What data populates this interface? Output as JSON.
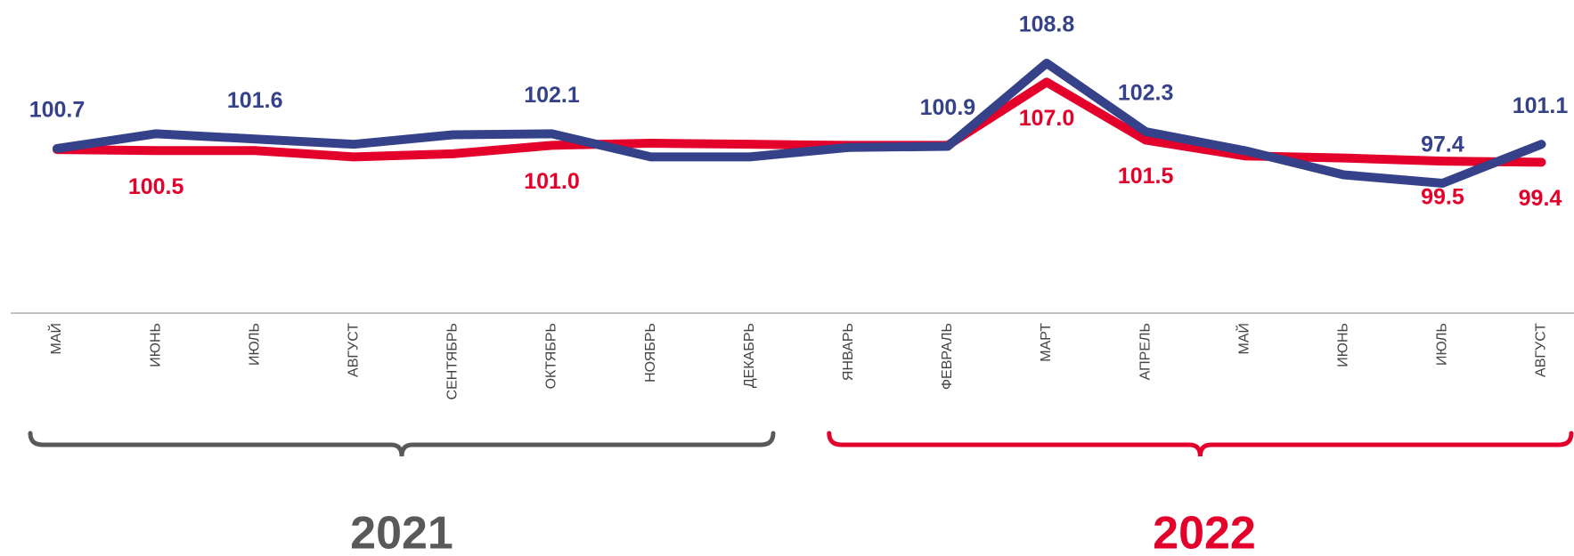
{
  "chart_data": {
    "type": "line",
    "categories": [
      "МАЙ",
      "ИЮНЬ",
      "ИЮЛЬ",
      "АВГУСТ",
      "СЕНТЯБРЬ",
      "ОКТЯБРЬ",
      "НОЯБРЬ",
      "ДЕКАБРЬ",
      "ЯНВАРЬ",
      "ФЕВРАЛЬ",
      "МАРТ",
      "АПРЕЛЬ",
      "МАЙ",
      "ИЮНЬ",
      "ИЮЛЬ",
      "АВГУСТ"
    ],
    "series": [
      {
        "color": "#e3002b",
        "values": [
          100.6,
          100.5,
          100.5,
          99.9,
          100.2,
          101.0,
          101.2,
          101.1,
          101.0,
          101.0,
          107.0,
          101.5,
          100.0,
          99.8,
          99.5,
          99.4
        ],
        "value_labels": [
          null,
          "100.5",
          null,
          null,
          null,
          "101.0",
          null,
          null,
          null,
          null,
          "107.0",
          "101.5",
          null,
          null,
          "99.5",
          "99.4"
        ]
      },
      {
        "color": "#35428a",
        "values": [
          100.7,
          102.1,
          101.6,
          101.1,
          102.0,
          102.1,
          99.9,
          99.9,
          100.8,
          100.9,
          108.8,
          102.3,
          100.5,
          98.2,
          97.4,
          101.1
        ],
        "value_labels": [
          "100.7",
          null,
          "101.6",
          null,
          null,
          "102.1",
          null,
          null,
          null,
          "100.9",
          "108.8",
          "102.3",
          null,
          null,
          "97.4",
          "101.1"
        ]
      }
    ],
    "groups": [
      {
        "label": "2021",
        "color": "#595959"
      },
      {
        "label": "2022",
        "color": "#e3002b"
      }
    ]
  }
}
